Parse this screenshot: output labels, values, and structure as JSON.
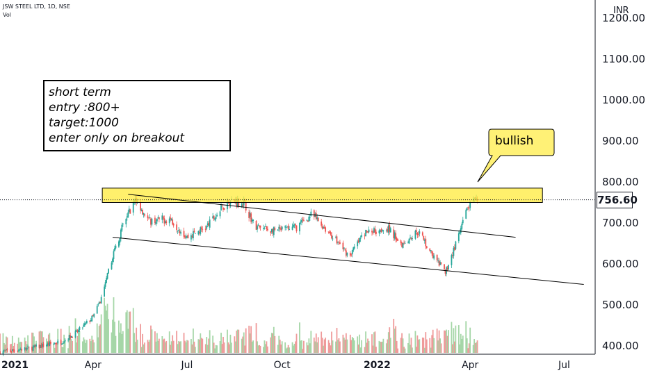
{
  "header": {
    "symbol": "JSW STEEL LTD, 1D, NSE",
    "volume_label": "Vol",
    "currency": "INR"
  },
  "annotation": {
    "lines": [
      "short term",
      "entry  :800+",
      "target:1000",
      "enter only on breakout"
    ]
  },
  "callout": {
    "text": "bullish",
    "fill": "#fff176"
  },
  "last_price": {
    "label": "756.60",
    "value": 756.6
  },
  "colors": {
    "up": "#26a69a",
    "down": "#ef5350",
    "zone": "#ffeb3b",
    "line": "#000000"
  },
  "chart_data": {
    "type": "candlestick",
    "symbol": "JSW STEEL LTD",
    "interval": "1D",
    "exchange": "NSE",
    "y_ticks": [
      {
        "value": 400,
        "label": "400.00"
      },
      {
        "value": 500,
        "label": "500.00"
      },
      {
        "value": 600,
        "label": "600.00"
      },
      {
        "value": 700,
        "label": "700.00"
      },
      {
        "value": 800,
        "label": "800.00"
      },
      {
        "value": 900,
        "label": "900.00"
      },
      {
        "value": 1000,
        "label": "1000.00"
      },
      {
        "value": 1100,
        "label": "1100.00"
      },
      {
        "value": 1200,
        "label": "1200.00"
      }
    ],
    "x_ticks": [
      {
        "date": "2021-01-01",
        "label": "2021",
        "bold": true
      },
      {
        "date": "2021-04-01",
        "label": "Apr",
        "bold": false
      },
      {
        "date": "2021-07-01",
        "label": "Jul",
        "bold": false
      },
      {
        "date": "2021-10-01",
        "label": "Oct",
        "bold": false
      },
      {
        "date": "2022-01-01",
        "label": "2022",
        "bold": true
      },
      {
        "date": "2022-04-01",
        "label": "Apr",
        "bold": false
      },
      {
        "date": "2022-07-01",
        "label": "Jul",
        "bold": false
      }
    ],
    "x_range": [
      "2021-01-01",
      "2022-07-31"
    ],
    "y_range": [
      380,
      1250
    ],
    "price_path": [
      {
        "date": "2021-01-01",
        "close": 385
      },
      {
        "date": "2021-02-01",
        "close": 395
      },
      {
        "date": "2021-03-01",
        "close": 410
      },
      {
        "date": "2021-03-15",
        "close": 430
      },
      {
        "date": "2021-04-01",
        "close": 470
      },
      {
        "date": "2021-04-10",
        "close": 520
      },
      {
        "date": "2021-04-20",
        "close": 620
      },
      {
        "date": "2021-05-01",
        "close": 700
      },
      {
        "date": "2021-05-12",
        "close": 760
      },
      {
        "date": "2021-05-25",
        "close": 705
      },
      {
        "date": "2021-06-15",
        "close": 710
      },
      {
        "date": "2021-07-01",
        "close": 665
      },
      {
        "date": "2021-07-20",
        "close": 690
      },
      {
        "date": "2021-08-10",
        "close": 755
      },
      {
        "date": "2021-08-25",
        "close": 750
      },
      {
        "date": "2021-09-05",
        "close": 690
      },
      {
        "date": "2021-09-25",
        "close": 680
      },
      {
        "date": "2021-10-15",
        "close": 690
      },
      {
        "date": "2021-10-30",
        "close": 720
      },
      {
        "date": "2021-11-20",
        "close": 665
      },
      {
        "date": "2021-12-05",
        "close": 620
      },
      {
        "date": "2021-12-20",
        "close": 675
      },
      {
        "date": "2022-01-10",
        "close": 690
      },
      {
        "date": "2022-01-25",
        "close": 650
      },
      {
        "date": "2022-02-10",
        "close": 680
      },
      {
        "date": "2022-02-25",
        "close": 615
      },
      {
        "date": "2022-03-08",
        "close": 580
      },
      {
        "date": "2022-03-20",
        "close": 660
      },
      {
        "date": "2022-03-30",
        "close": 740
      },
      {
        "date": "2022-04-10",
        "close": 757
      }
    ],
    "resistance_zone": {
      "from": "2021-04-10",
      "to": "2022-06-10",
      "low": 750,
      "high": 785
    },
    "trendlines": [
      {
        "name": "upper channel",
        "start": {
          "date": "2021-05-05",
          "value": 770
        },
        "end": {
          "date": "2022-05-15",
          "value": 665
        }
      },
      {
        "name": "lower channel",
        "start": {
          "date": "2021-04-20",
          "value": 665
        },
        "end": {
          "date": "2022-07-20",
          "value": 550
        }
      }
    ],
    "last_price": 756.6,
    "volume_shown": true
  }
}
